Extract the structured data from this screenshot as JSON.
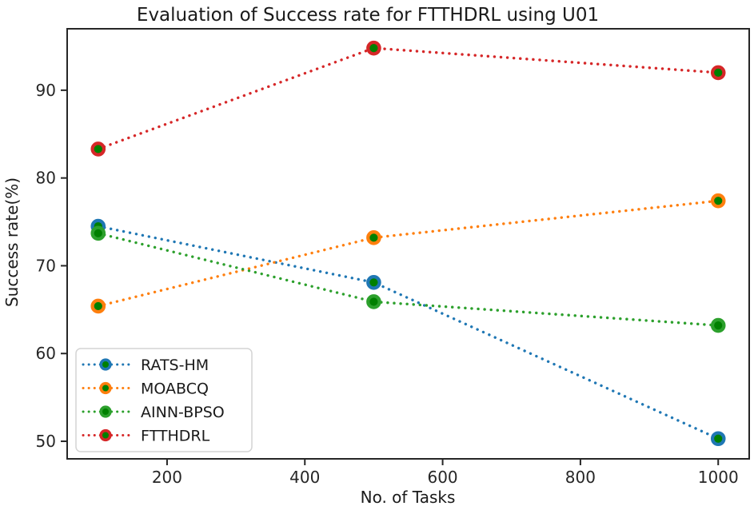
{
  "chart_data": {
    "type": "line",
    "title": "Evaluation of Success rate for FTTHDRL using U01",
    "xlabel": "No. of Tasks",
    "ylabel": "Success rate(%)",
    "x": [
      100,
      500,
      1000
    ],
    "series": [
      {
        "name": "RATS-HM",
        "color": "#1f77b4",
        "values": [
          74.5,
          68.1,
          50.3
        ]
      },
      {
        "name": "MOABCQ",
        "color": "#ff7f0e",
        "values": [
          65.4,
          73.2,
          77.4
        ]
      },
      {
        "name": "AINN-BPSO",
        "color": "#2ca02c",
        "values": [
          73.7,
          65.9,
          63.2
        ]
      },
      {
        "name": "FTTHDRL",
        "color": "#d62728",
        "values": [
          83.3,
          94.8,
          92.0
        ]
      }
    ],
    "line_style": "dotted",
    "marker": {
      "shape": "circle",
      "face_color": "#008000",
      "edge_from_series": true
    },
    "xlim": [
      55,
      1045
    ],
    "ylim": [
      48,
      97
    ],
    "xticks": [
      200,
      400,
      600,
      800,
      1000
    ],
    "yticks": [
      50,
      60,
      70,
      80,
      90
    ],
    "grid": false,
    "legend": {
      "position": "lower-left"
    }
  },
  "style_colors": {
    "spine": "#262626",
    "tick": "#262626",
    "legend_border": "#d4d4d4",
    "legend_bg": "#ffffff",
    "background": "#ffffff"
  }
}
